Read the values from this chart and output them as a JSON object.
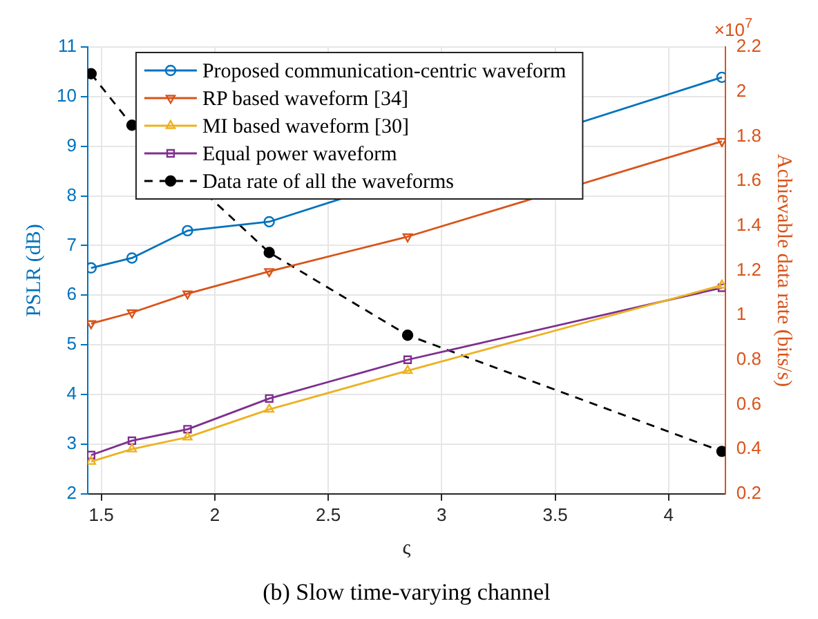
{
  "chart_data": {
    "type": "line",
    "x": [
      1.455,
      1.635,
      1.88,
      2.24,
      2.85,
      4.235
    ],
    "xlabel": "ς",
    "ylabel": "PSLR (dB)",
    "y2label": "Achievable data rate (bits/s)",
    "xlim": [
      1.44,
      4.25
    ],
    "xticks": [
      1.5,
      2,
      2.5,
      3,
      3.5,
      4
    ],
    "ylim": [
      2,
      11
    ],
    "yticks": [
      2,
      3,
      4,
      5,
      6,
      7,
      8,
      9,
      10,
      11
    ],
    "y2lim": [
      0.2,
      2.2
    ],
    "y2ticks": [
      0.2,
      0.4,
      0.6,
      0.8,
      {
        "value": 1,
        "label": "1"
      },
      1.2,
      1.4,
      1.6,
      1.8,
      {
        "value": 2,
        "label": "2"
      },
      2.2
    ],
    "series": [
      {
        "name": "Proposed communication-centric waveform",
        "color": "#0072bd",
        "marker": "circle",
        "values": [
          6.55,
          6.75,
          7.3,
          7.48,
          null,
          10.39
        ]
      },
      {
        "name": "RP based waveform [34]",
        "color": "#d95319",
        "marker": "triangle",
        "values": [
          5.43,
          5.65,
          6.03,
          6.48,
          7.18,
          9.1
        ]
      },
      {
        "name": "MI based waveform [30]",
        "color": "#edb120",
        "marker": "triangle",
        "values": [
          2.65,
          2.9,
          3.14,
          3.7,
          4.48,
          6.2
        ]
      },
      {
        "name": "Equal power waveform",
        "color": "#7e2f8e",
        "marker": "square",
        "values": [
          2.78,
          3.07,
          3.3,
          3.92,
          4.7,
          6.15
        ]
      },
      {
        "name": "Data rate of all the waveforms",
        "color": "#000000",
        "marker": "circle",
        "line_style": "dashed",
        "axis": "y2",
        "values": [
          2.08,
          1.85,
          null,
          1.28,
          0.91,
          0.39
        ]
      }
    ],
    "annotations": [
      "×10$^{7}$",
      "(b) Slow time-varying channel"
    ],
    "grid": true,
    "legend": "top left"
  }
}
